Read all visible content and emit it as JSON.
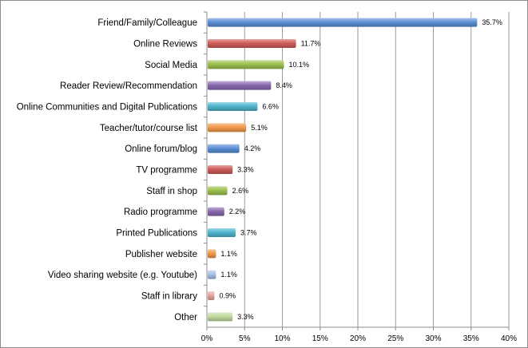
{
  "chart_data": {
    "type": "bar",
    "orientation": "horizontal",
    "title": "",
    "xlabel": "",
    "ylabel": "",
    "xlim": [
      0,
      40
    ],
    "grid": true,
    "tick_values": [
      0,
      5,
      10,
      15,
      20,
      25,
      30,
      35,
      40
    ],
    "tick_labels": [
      "0%",
      "5%",
      "10%",
      "15%",
      "20%",
      "25%",
      "30%",
      "35%",
      "40%"
    ],
    "categories": [
      "Friend/Family/Colleague",
      "Online Reviews",
      "Social Media",
      "Reader Review/Recommendation",
      "Online Communities and Digital Publications",
      "Teacher/tutor/course list",
      "Online forum/blog",
      "TV programme",
      "Staff in shop",
      "Radio programme",
      "Printed Publications",
      "Publisher website",
      "Video sharing website (e.g. Youtube)",
      "Staff in library",
      "Other"
    ],
    "values": [
      35.7,
      11.7,
      10.1,
      8.4,
      6.6,
      5.1,
      4.2,
      3.3,
      2.6,
      2.2,
      3.7,
      1.1,
      1.1,
      0.9,
      3.3
    ],
    "value_labels": [
      "35.7%",
      "11.7%",
      "10.1%",
      "8.4%",
      "6.6%",
      "5.1%",
      "4.2%",
      "3.3%",
      "2.6%",
      "2.2%",
      "3.7%",
      "1.1%",
      "1.1%",
      "0.9%",
      "3.3%"
    ],
    "colors": [
      "#5b8fd6",
      "#cf5d5a",
      "#9cc24f",
      "#8a69b0",
      "#4fb5d0",
      "#f19a48",
      "#5b8fd6",
      "#cf5d5a",
      "#9cc24f",
      "#8a69b0",
      "#4fb5d0",
      "#f19a48",
      "#a7bfe8",
      "#e8a5a3",
      "#c4dba0"
    ]
  }
}
